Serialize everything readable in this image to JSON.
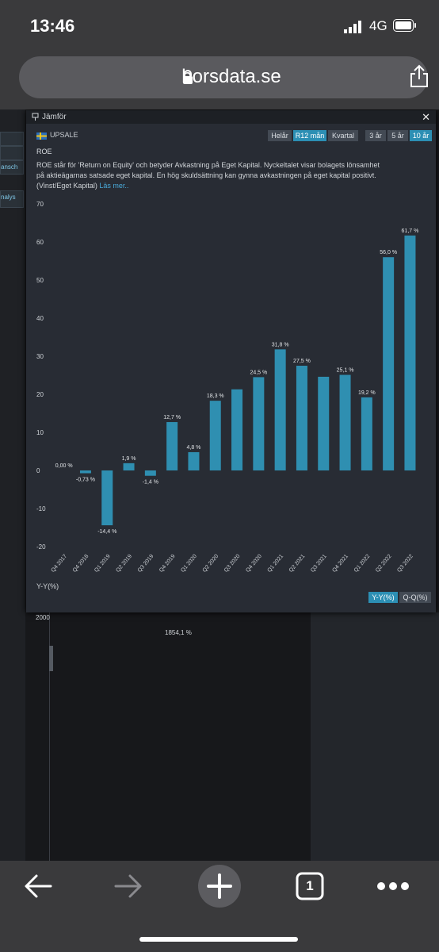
{
  "status_bar": {
    "time": "13:46",
    "network": "4G"
  },
  "browser": {
    "url": "borsdata.se"
  },
  "left_panel": {
    "items": [
      "ansch",
      "nalys"
    ]
  },
  "modal": {
    "title": "Jämför",
    "close_symbol": "✕",
    "company": "UPSALE",
    "period_buttons": [
      {
        "label": "Helår",
        "active": false
      },
      {
        "label": "R12 mån",
        "active": true
      },
      {
        "label": "Kvartal",
        "active": false
      }
    ],
    "range_buttons": [
      {
        "label": "3 år",
        "active": false
      },
      {
        "label": "5 år",
        "active": false
      },
      {
        "label": "10 år",
        "active": true
      }
    ],
    "kpi_name": "ROE",
    "description": "ROE står för 'Return on Equity' och betyder Avkastning på Eget Kapital. Nyckeltalet visar bolagets lönsamhet på aktieägarnas satsade eget kapital. En hög skuldsättning kan gynna avkastningen på eget kapital positivt. (Vinst/Eget Kapital)",
    "read_more": "Läs mer..",
    "growth_title": "Y-Y(%)",
    "growth_buttons": [
      {
        "label": "Y-Y(%)",
        "active": true
      },
      {
        "label": "Q-Q(%)",
        "active": false
      }
    ],
    "growth_axis_label": "2000",
    "growth_value_label": "1854,1 %"
  },
  "chart_data": {
    "type": "bar",
    "categories": [
      "Q4 2017",
      "Q4 2018",
      "Q1 2019",
      "Q2 2019",
      "Q3 2019",
      "Q4 2019",
      "Q1 2020",
      "Q2 2020",
      "Q3 2020",
      "Q4 2020",
      "Q1 2021",
      "Q2 2021",
      "Q3 2021",
      "Q4 2021",
      "Q1 2022",
      "Q2 2022",
      "Q3 2022"
    ],
    "values": [
      0,
      -0.73,
      -14.4,
      1.9,
      -1.4,
      12.7,
      4.8,
      18.3,
      21.3,
      24.5,
      31.8,
      27.5,
      24.6,
      25.1,
      19.2,
      56.0,
      61.7
    ],
    "labels": [
      "0,00 %",
      "-0,73 %",
      "-14,4 %",
      "1,9 %",
      "-1,4 %",
      "12,7 %",
      "4,8 %",
      "18,3 %",
      "",
      "24,5 %",
      "31,8 %",
      "27,5 %",
      "",
      "25,1 %",
      "19,2 %",
      "56,0 %",
      "61,7 %"
    ],
    "ylim": [
      -20,
      70
    ],
    "yticks": [
      70,
      60,
      50,
      40,
      30,
      20,
      10,
      0,
      -10,
      -20
    ],
    "bar_color": "#2f8fb1",
    "grid": false
  },
  "toolbar": {
    "tab_count": "1"
  }
}
